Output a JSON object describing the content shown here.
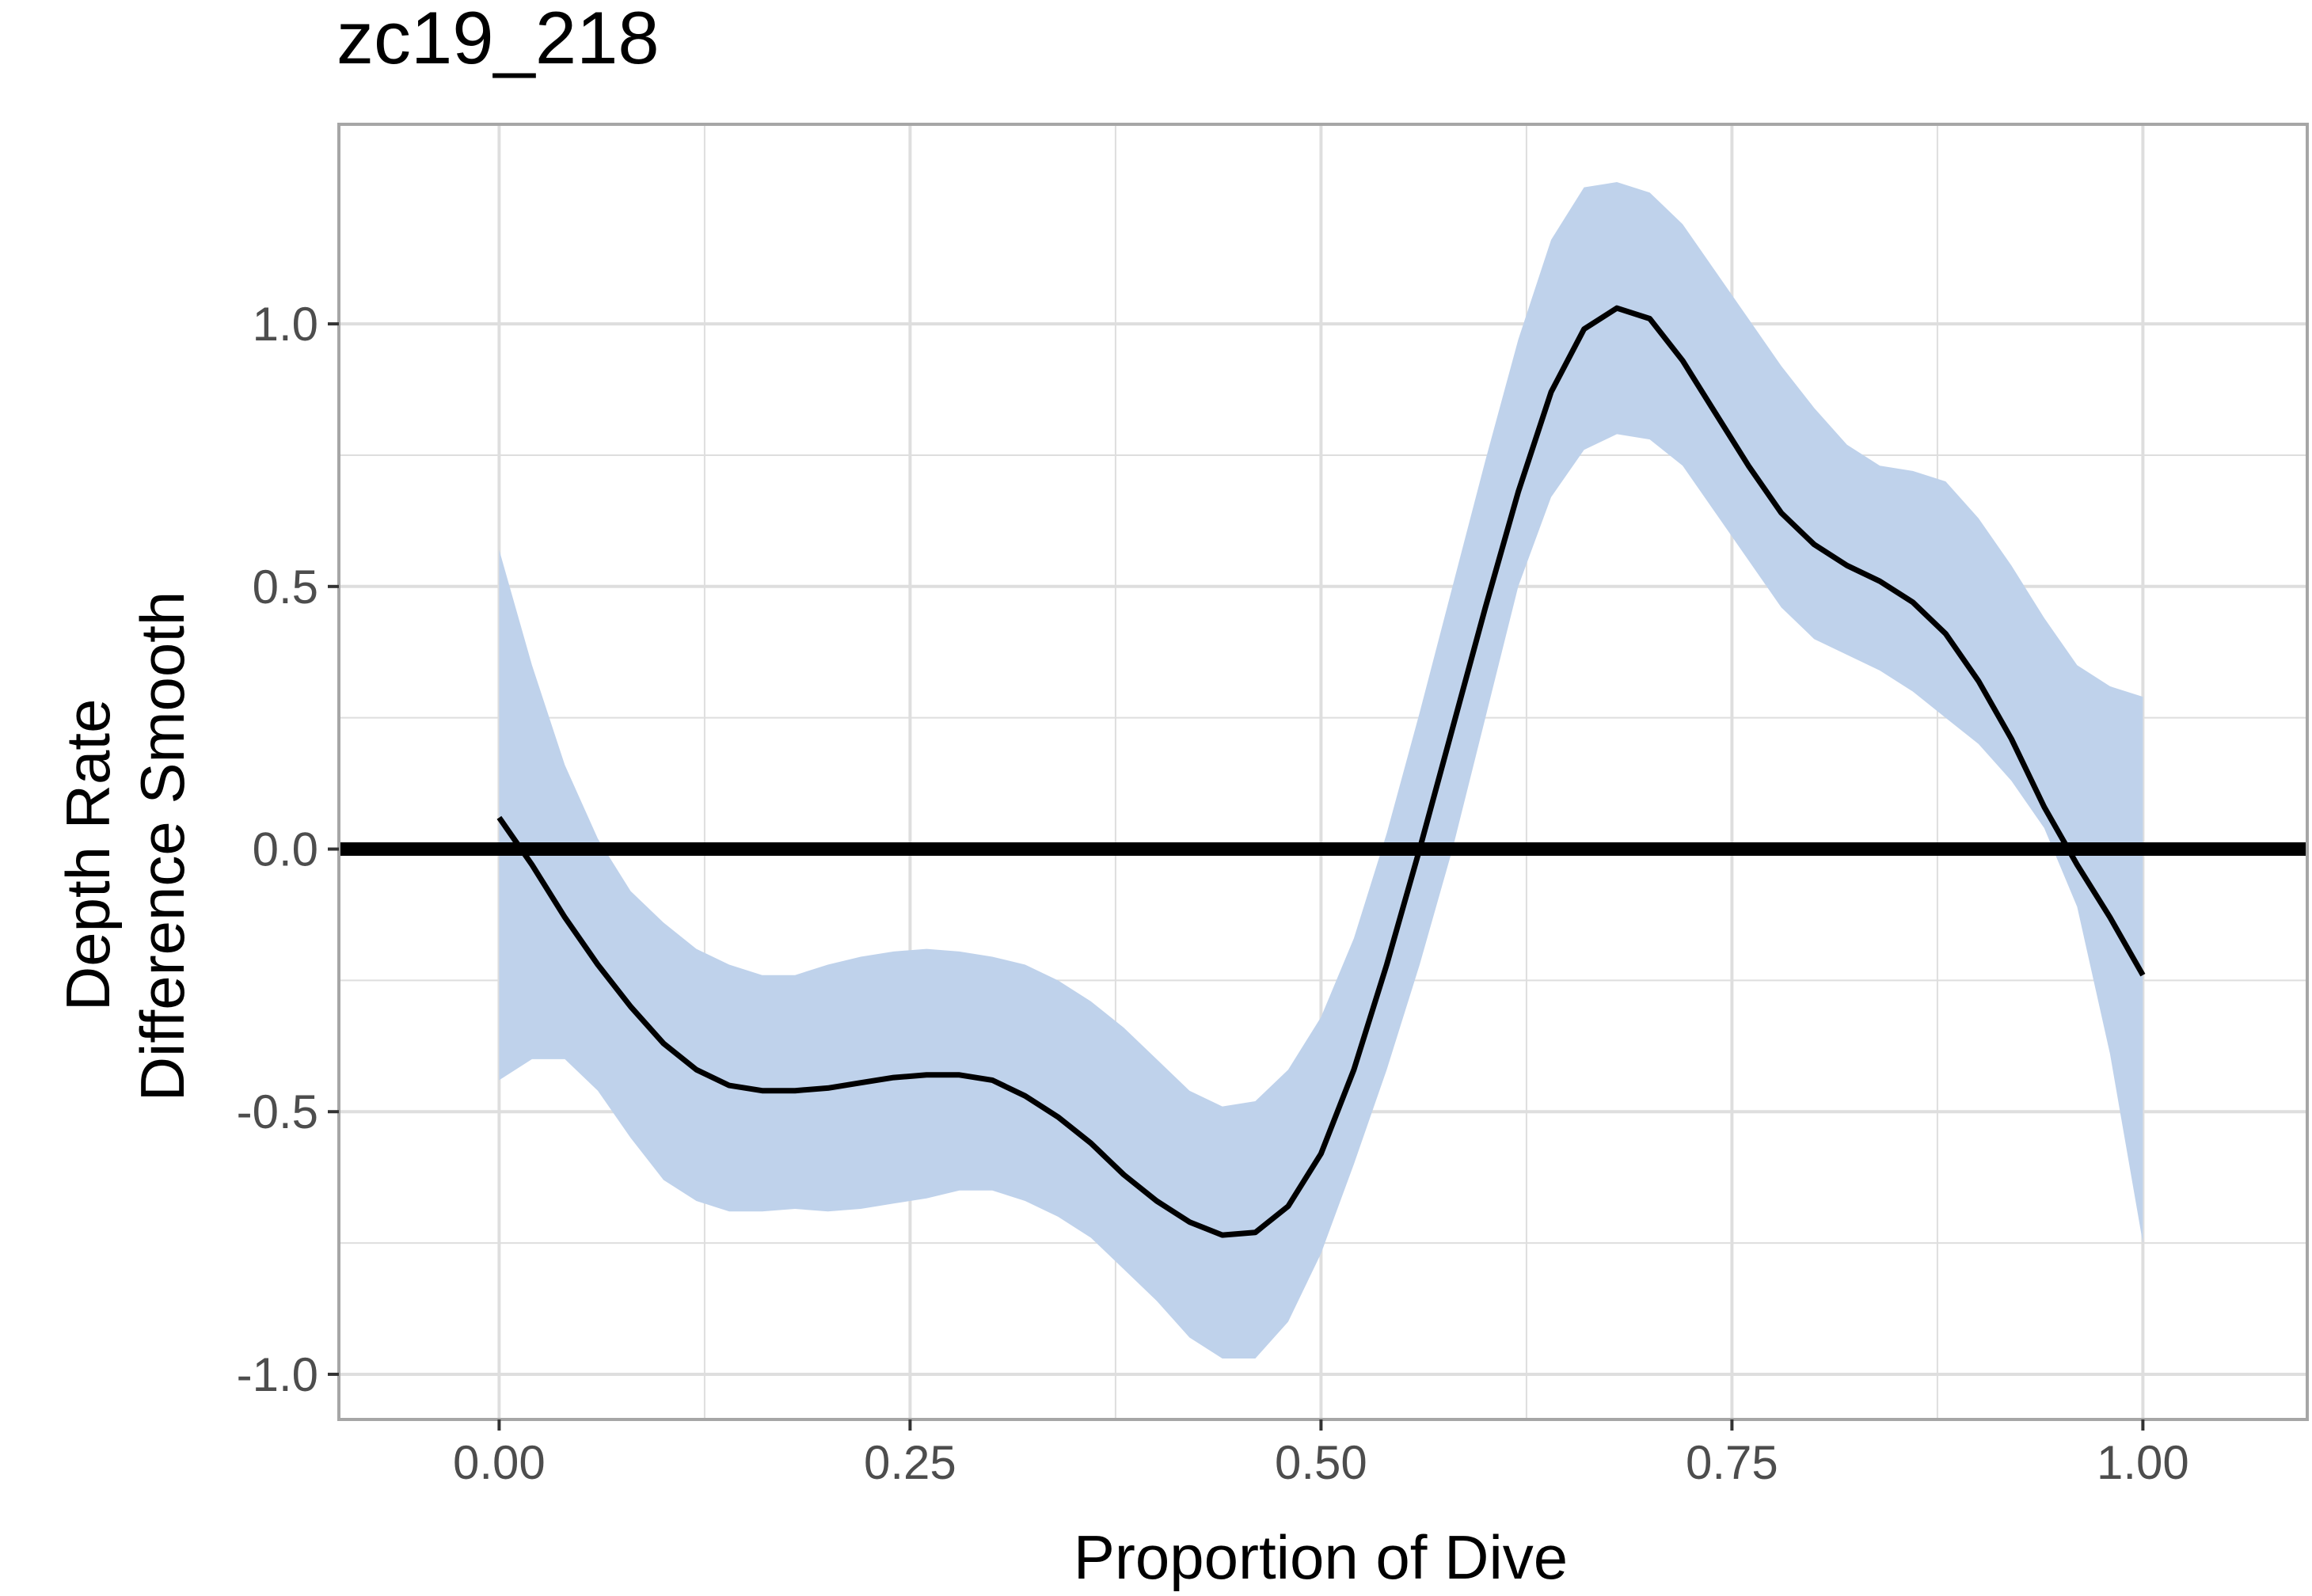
{
  "chart_data": {
    "type": "line",
    "title": "zc19_218",
    "xlabel": "Proportion of Dive",
    "ylabel_lines": [
      "Depth Rate",
      "Difference Smooth"
    ],
    "xlim": [
      -0.0975,
      1.1
    ],
    "ylim": [
      -1.086,
      1.38
    ],
    "x_ticks": [
      0,
      0.25,
      0.5,
      0.75,
      1
    ],
    "x_tick_labels": [
      "0.00",
      "0.25",
      "0.50",
      "0.75",
      "1.00"
    ],
    "y_ticks": [
      -1,
      -0.5,
      0,
      0.5,
      1
    ],
    "y_tick_labels": [
      "-1.0",
      "-0.5",
      "0.0",
      "0.5",
      "1.0"
    ],
    "grid": true,
    "reference_line": {
      "y": 0
    },
    "colors": {
      "line": "#000000",
      "ribbon": "#bfd2eb",
      "grid": "#dedede",
      "border": "#a6a6a6"
    },
    "series": [
      {
        "x": [
          0.0,
          0.02,
          0.04,
          0.06,
          0.08,
          0.1,
          0.12,
          0.14,
          0.16,
          0.18,
          0.2,
          0.22,
          0.24,
          0.26,
          0.28,
          0.3,
          0.32,
          0.34,
          0.36,
          0.38,
          0.4,
          0.42,
          0.44,
          0.46,
          0.48,
          0.5,
          0.52,
          0.54,
          0.56,
          0.58,
          0.6,
          0.62,
          0.64,
          0.66,
          0.68,
          0.7,
          0.72,
          0.74,
          0.76,
          0.78,
          0.8,
          0.82,
          0.84,
          0.86,
          0.88,
          0.9,
          0.92,
          0.94,
          0.96,
          0.98,
          1.0
        ],
        "y": [
          0.06,
          -0.03,
          -0.13,
          -0.22,
          -0.3,
          -0.37,
          -0.42,
          -0.45,
          -0.46,
          -0.46,
          -0.455,
          -0.445,
          -0.435,
          -0.43,
          -0.43,
          -0.44,
          -0.47,
          -0.51,
          -0.56,
          -0.62,
          -0.67,
          -0.71,
          -0.735,
          -0.73,
          -0.68,
          -0.58,
          -0.42,
          -0.22,
          0.0,
          0.23,
          0.46,
          0.68,
          0.87,
          0.99,
          1.03,
          1.01,
          0.93,
          0.83,
          0.73,
          0.64,
          0.58,
          0.54,
          0.51,
          0.47,
          0.41,
          0.32,
          0.21,
          0.08,
          -0.03,
          -0.13,
          -0.24
        ],
        "lower": [
          -0.44,
          -0.4,
          -0.4,
          -0.46,
          -0.55,
          -0.63,
          -0.67,
          -0.69,
          -0.69,
          -0.685,
          -0.69,
          -0.685,
          -0.675,
          -0.665,
          -0.65,
          -0.65,
          -0.67,
          -0.7,
          -0.74,
          -0.8,
          -0.86,
          -0.93,
          -0.97,
          -0.97,
          -0.9,
          -0.77,
          -0.6,
          -0.42,
          -0.22,
          0.0,
          0.25,
          0.5,
          0.67,
          0.76,
          0.79,
          0.78,
          0.73,
          0.64,
          0.55,
          0.46,
          0.4,
          0.37,
          0.34,
          0.3,
          0.25,
          0.2,
          0.13,
          0.04,
          -0.11,
          -0.39,
          -0.75
        ],
        "upper": [
          0.57,
          0.35,
          0.16,
          0.02,
          -0.08,
          -0.14,
          -0.19,
          -0.22,
          -0.24,
          -0.24,
          -0.22,
          -0.205,
          -0.195,
          -0.19,
          -0.195,
          -0.205,
          -0.22,
          -0.25,
          -0.29,
          -0.34,
          -0.4,
          -0.46,
          -0.49,
          -0.48,
          -0.42,
          -0.32,
          -0.17,
          0.03,
          0.26,
          0.5,
          0.74,
          0.97,
          1.16,
          1.26,
          1.27,
          1.25,
          1.19,
          1.1,
          1.01,
          0.92,
          0.84,
          0.77,
          0.73,
          0.72,
          0.7,
          0.63,
          0.54,
          0.44,
          0.35,
          0.31,
          0.29
        ]
      }
    ]
  }
}
